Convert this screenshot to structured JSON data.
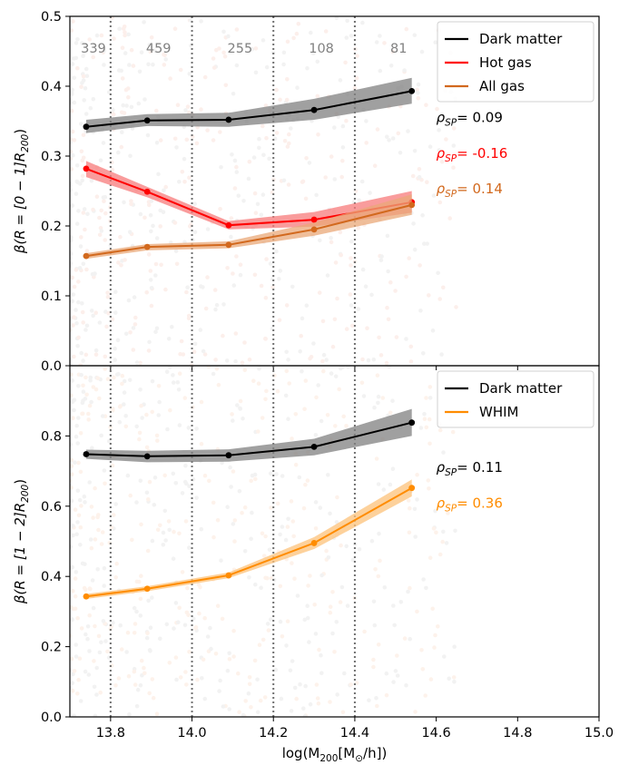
{
  "chart_data": [
    {
      "type": "line",
      "panel": "top",
      "ylabel_prefix": "β(R = [0 − 1]R",
      "ylabel_sub": "200",
      "ylabel_suffix": ")",
      "xlim": [
        13.7,
        15.0
      ],
      "ylim": [
        0.0,
        0.5
      ],
      "xticks": [
        "13.8",
        "14.0",
        "14.2",
        "14.4",
        "14.6",
        "14.8",
        "15.0"
      ],
      "xtick_values": [
        13.8,
        14.0,
        14.2,
        14.4,
        14.6,
        14.8,
        15.0
      ],
      "yticks": [
        "0.0",
        "0.1",
        "0.2",
        "0.3",
        "0.4",
        "0.5"
      ],
      "ytick_values": [
        0.0,
        0.1,
        0.2,
        0.3,
        0.4,
        0.5
      ],
      "bin_edges": [
        13.8,
        14.0,
        14.2,
        14.4
      ],
      "bin_counts": [
        {
          "label": "339",
          "x": 13.74
        },
        {
          "label": "459",
          "x": 13.9
        },
        {
          "label": "255",
          "x": 14.1
        },
        {
          "label": "108",
          "x": 14.3
        },
        {
          "label": "81",
          "x": 14.49
        }
      ],
      "x": [
        13.74,
        13.89,
        14.09,
        14.3,
        14.54
      ],
      "series": [
        {
          "name": "Dark matter",
          "color": "#000000",
          "band_color": "#808080",
          "values": [
            0.342,
            0.351,
            0.352,
            0.366,
            0.393
          ],
          "lower": [
            0.333,
            0.343,
            0.342,
            0.352,
            0.375
          ],
          "upper": [
            0.352,
            0.36,
            0.362,
            0.382,
            0.412
          ]
        },
        {
          "name": "Hot gas",
          "color": "#ff0000",
          "band_color": "#f77b7b",
          "values": [
            0.282,
            0.249,
            0.201,
            0.209,
            0.234
          ],
          "lower": [
            0.27,
            0.241,
            0.195,
            0.199,
            0.219
          ],
          "upper": [
            0.293,
            0.256,
            0.207,
            0.22,
            0.25
          ]
        },
        {
          "name": "All gas",
          "color": "#d2691e",
          "band_color": "#eaa878",
          "values": [
            0.157,
            0.17,
            0.173,
            0.195,
            0.23
          ],
          "lower": [
            0.153,
            0.165,
            0.168,
            0.186,
            0.216
          ],
          "upper": [
            0.161,
            0.174,
            0.178,
            0.205,
            0.245
          ]
        }
      ],
      "legend": {
        "placement": "top-right",
        "entries": [
          "Dark matter",
          "Hot gas",
          "All gas"
        ]
      },
      "annotations": [
        {
          "label": "ρ",
          "sub": "SP",
          "value": "= 0.09",
          "color": "#000000",
          "y": 0.355
        },
        {
          "label": "ρ",
          "sub": "SP",
          "value": "= -0.16",
          "color": "#ff0000",
          "y": 0.304
        },
        {
          "label": "ρ",
          "sub": "SP",
          "value": "= 0.14",
          "color": "#d2691e",
          "y": 0.253
        }
      ],
      "scatter_colors": [
        "#c8c8c8",
        "#f4b8a8"
      ],
      "grid": false
    },
    {
      "type": "line",
      "panel": "bottom",
      "ylabel_prefix": "β(R = [1 − 2]R",
      "ylabel_sub": "200",
      "ylabel_suffix": ")",
      "xlabel_prefix": "log(M",
      "xlabel_sub": "200",
      "xlabel_mid": "[M",
      "xlabel_sub2": "⊙",
      "xlabel_suffix": "/h])",
      "xlim": [
        13.7,
        15.0
      ],
      "ylim": [
        0.0,
        1.0
      ],
      "xticks": [
        "13.8",
        "14.0",
        "14.2",
        "14.4",
        "14.6",
        "14.8",
        "15.0"
      ],
      "xtick_values": [
        13.8,
        14.0,
        14.2,
        14.4,
        14.6,
        14.8,
        15.0
      ],
      "yticks": [
        "0.0",
        "0.2",
        "0.4",
        "0.6",
        "0.8"
      ],
      "ytick_values": [
        0.0,
        0.2,
        0.4,
        0.6,
        0.8
      ],
      "bin_edges": [
        13.8,
        14.0,
        14.2,
        14.4
      ],
      "x": [
        13.74,
        13.89,
        14.09,
        14.3,
        14.54
      ],
      "series": [
        {
          "name": "Dark matter",
          "color": "#000000",
          "band_color": "#808080",
          "values": [
            0.748,
            0.742,
            0.745,
            0.769,
            0.838
          ],
          "lower": [
            0.735,
            0.725,
            0.727,
            0.745,
            0.8
          ],
          "upper": [
            0.761,
            0.758,
            0.762,
            0.792,
            0.877
          ]
        },
        {
          "name": "WHIM",
          "color": "#ff8c00",
          "band_color": "#fcc27a",
          "values": [
            0.343,
            0.365,
            0.403,
            0.495,
            0.652
          ],
          "lower": [
            0.336,
            0.358,
            0.395,
            0.478,
            0.628
          ],
          "upper": [
            0.35,
            0.372,
            0.411,
            0.512,
            0.676
          ]
        }
      ],
      "legend": {
        "placement": "top-right",
        "entries": [
          "Dark matter",
          "WHIM"
        ]
      },
      "annotations": [
        {
          "label": "ρ",
          "sub": "SP",
          "value": "= 0.11",
          "color": "#000000",
          "y": 0.71
        },
        {
          "label": "ρ",
          "sub": "SP",
          "value": "= 0.36",
          "color": "#ff8c00",
          "y": 0.608
        }
      ],
      "scatter_colors": [
        "#c8c8c8",
        "#f9c9a6"
      ],
      "grid": false
    }
  ]
}
